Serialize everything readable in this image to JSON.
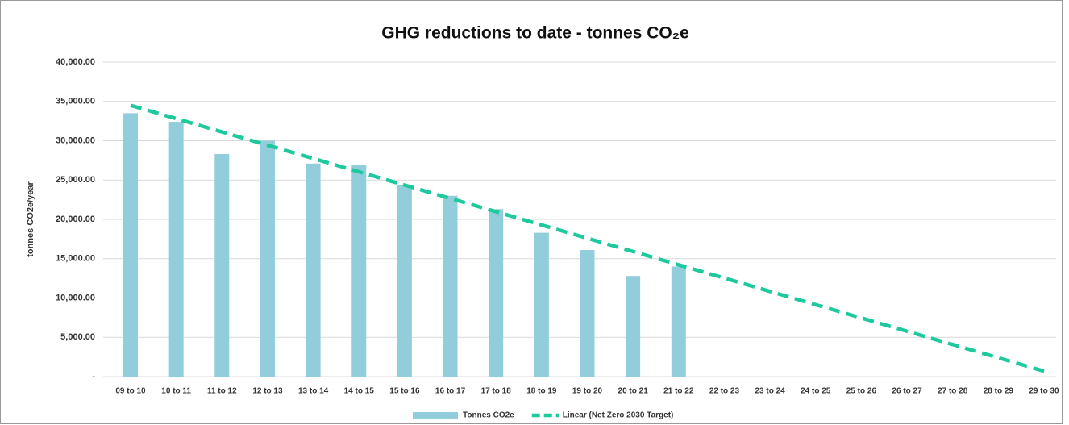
{
  "chart_data": {
    "type": "bar",
    "title": "GHG reductions to date - tonnes CO₂e",
    "y_label": "tonnes CO2e/year",
    "categories": [
      "09 to 10",
      "10 to 11",
      "11 to 12",
      "12 to 13",
      "13 to 14",
      "14 to 15",
      "15 to 16",
      "16 to 17",
      "17 to 18",
      "18 to 19",
      "19 to 20",
      "20 to 21",
      "21 to 22",
      "22 to 23",
      "23 to 24",
      "24 to 25",
      "25 to 26",
      "26 to 27",
      "27 to 28",
      "28 to 29",
      "29 to 30"
    ],
    "series": [
      {
        "name": "Tonnes CO2e",
        "type": "bar",
        "color": "#92cddc",
        "values": [
          33500,
          32400,
          28300,
          30000,
          27100,
          26900,
          24300,
          23000,
          21300,
          18300,
          16100,
          12800,
          14000,
          null,
          null,
          null,
          null,
          null,
          null,
          null,
          null
        ]
      },
      {
        "name": "Linear (Net Zero 2030 Target)",
        "type": "line",
        "style": "dashed",
        "color": "#1fc99e",
        "values": [
          34500,
          32810,
          31120,
          29430,
          27740,
          26050,
          24360,
          22670,
          20980,
          19290,
          17600,
          15910,
          14220,
          12530,
          10840,
          9150,
          7460,
          5770,
          4080,
          2390,
          700
        ]
      }
    ],
    "ylim": [
      0,
      40000
    ],
    "yticks": [
      {
        "value": 0,
        "label": "-"
      },
      {
        "value": 5000,
        "label": "5,000.00"
      },
      {
        "value": 10000,
        "label": "10,000.00"
      },
      {
        "value": 15000,
        "label": "15,000.00"
      },
      {
        "value": 20000,
        "label": "20,000.00"
      },
      {
        "value": 25000,
        "label": "25,000.00"
      },
      {
        "value": 30000,
        "label": "30,000.00"
      },
      {
        "value": 35000,
        "label": "35,000.00"
      },
      {
        "value": 40000,
        "label": "40,000.00"
      }
    ],
    "grid": true,
    "legend": "bottom"
  }
}
